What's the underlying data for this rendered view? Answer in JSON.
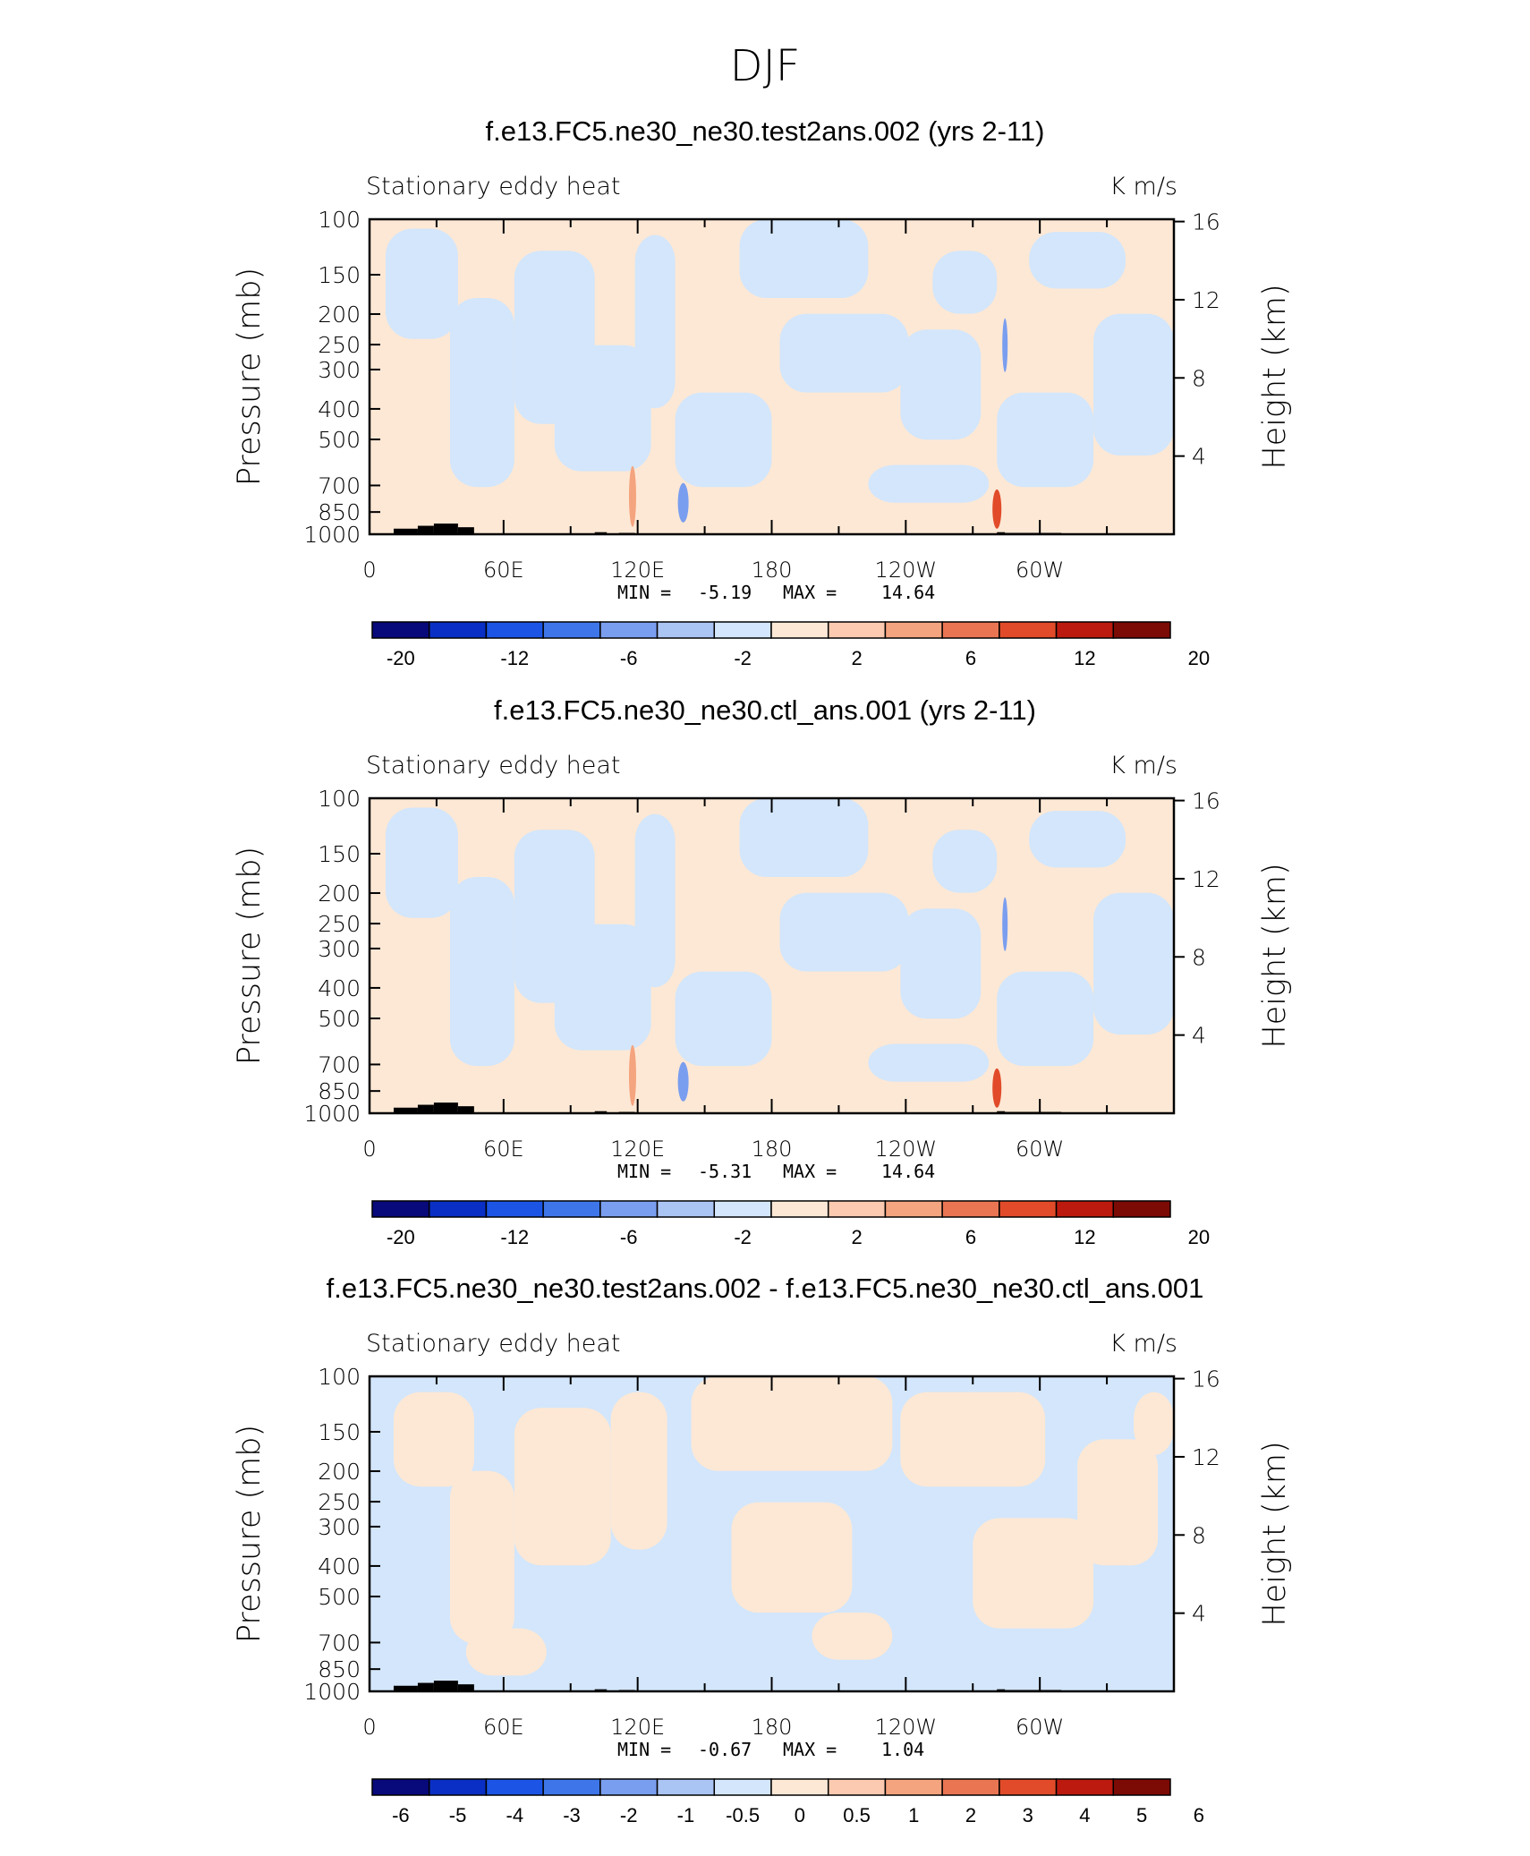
{
  "figure_title": "DJF",
  "colors": {
    "neg": [
      "#08097a",
      "#0a2fc4",
      "#1c55e6",
      "#3e76ea",
      "#7a9eef",
      "#aac4f4",
      "#d3e6fb"
    ],
    "pos": [
      "#fde8d5",
      "#fbcab0",
      "#f4a47e",
      "#ea7553",
      "#e14b29",
      "#bc1a0e",
      "#7c0a05"
    ],
    "topography": "#000000"
  },
  "chart_data": [
    {
      "type": "heatmap",
      "title": "f.e13.FC5.ne30_ne30.test2ans.002 (yrs 2-11)",
      "left_label": "Stationary eddy heat",
      "right_label": "K m/s",
      "ylabel": "Pressure (mb)",
      "y2label": "Height (km)",
      "pressure_ticks": [
        100,
        150,
        200,
        250,
        300,
        400,
        500,
        700,
        850,
        1000
      ],
      "height_ticks": [
        16,
        12,
        8,
        4
      ],
      "lon_ticks": [
        "0",
        "60E",
        "120E",
        "180",
        "120W",
        "60W"
      ],
      "min_label": "MIN =",
      "min_value": "-5.19",
      "max_label": "MAX =",
      "max_value": "14.64",
      "colorbar_labels": [
        "-20",
        "-12",
        "-6",
        "-2",
        "2",
        "6",
        "12",
        "20"
      ]
    },
    {
      "type": "heatmap",
      "title": "f.e13.FC5.ne30_ne30.ctl_ans.001 (yrs 2-11)",
      "left_label": "Stationary eddy heat",
      "right_label": "K m/s",
      "ylabel": "Pressure (mb)",
      "y2label": "Height (km)",
      "pressure_ticks": [
        100,
        150,
        200,
        250,
        300,
        400,
        500,
        700,
        850,
        1000
      ],
      "height_ticks": [
        16,
        12,
        8,
        4
      ],
      "lon_ticks": [
        "0",
        "60E",
        "120E",
        "180",
        "120W",
        "60W"
      ],
      "min_label": "MIN =",
      "min_value": "-5.31",
      "max_label": "MAX =",
      "max_value": "14.64",
      "colorbar_labels": [
        "-20",
        "-12",
        "-6",
        "-2",
        "2",
        "6",
        "12",
        "20"
      ]
    },
    {
      "type": "heatmap",
      "title": "f.e13.FC5.ne30_ne30.test2ans.002 - f.e13.FC5.ne30_ne30.ctl_ans.001",
      "left_label": "Stationary eddy heat",
      "right_label": "K m/s",
      "ylabel": "Pressure (mb)",
      "y2label": "Height (km)",
      "pressure_ticks": [
        100,
        150,
        200,
        250,
        300,
        400,
        500,
        700,
        850,
        1000
      ],
      "height_ticks": [
        16,
        12,
        8,
        4
      ],
      "lon_ticks": [
        "0",
        "60E",
        "120E",
        "180",
        "120W",
        "60W"
      ],
      "min_label": "MIN =",
      "min_value": "-0.67",
      "max_label": "MAX =",
      "max_value": "1.04",
      "colorbar_labels": [
        "-6",
        "-5",
        "-4",
        "-3",
        "-2",
        "-1",
        "-0.5",
        "0",
        "0.5",
        "1",
        "2",
        "3",
        "4",
        "5",
        "6"
      ]
    }
  ]
}
